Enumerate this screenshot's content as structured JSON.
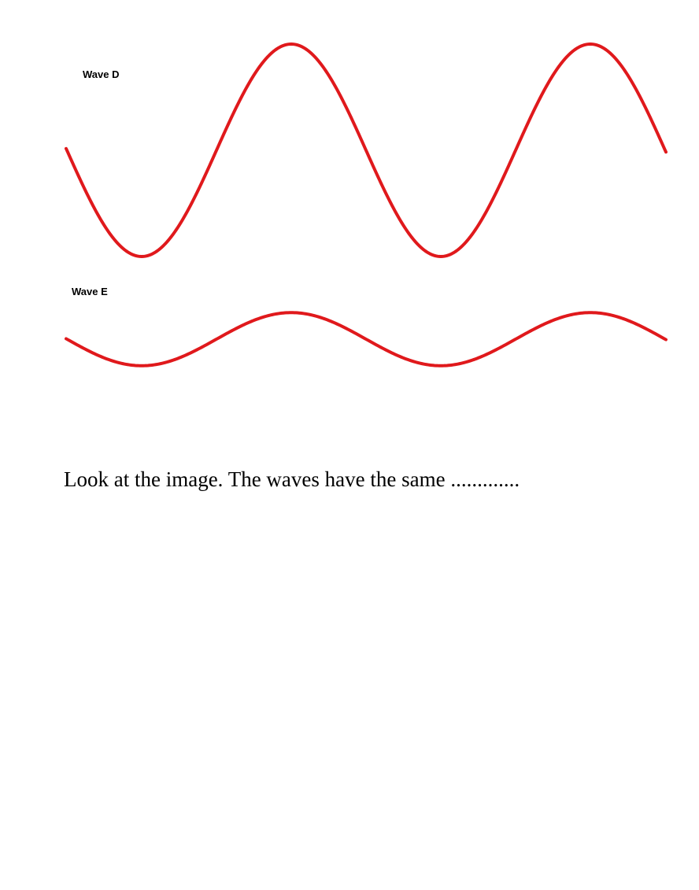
{
  "figure": {
    "wave_color": "#e0191c",
    "waves": [
      {
        "label": "Wave D",
        "relative_amplitude": 1.0,
        "cycles_shown": 2
      },
      {
        "label": "Wave E",
        "relative_amplitude": 0.25,
        "cycles_shown": 2
      }
    ]
  },
  "question": {
    "text": "Look at the image. The waves have the same ............."
  }
}
